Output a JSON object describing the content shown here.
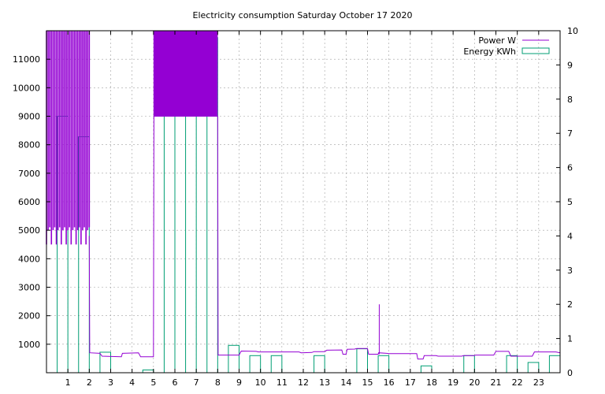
{
  "chart_data": {
    "type": "line",
    "title": "Electricity consumption Saturday October 17 2020",
    "xlabel": "",
    "ylabel": "",
    "y2label": "",
    "xlim": [
      0,
      24
    ],
    "ylim": [
      0,
      12000
    ],
    "y2lim": [
      0,
      10
    ],
    "x_ticks": [
      1,
      2,
      3,
      4,
      5,
      6,
      7,
      8,
      9,
      10,
      11,
      12,
      13,
      14,
      15,
      16,
      17,
      18,
      19,
      20,
      21,
      22,
      23
    ],
    "y_ticks": [
      1000,
      2000,
      3000,
      4000,
      5000,
      6000,
      7000,
      8000,
      9000,
      10000,
      11000
    ],
    "y2_ticks": [
      0,
      1,
      2,
      3,
      4,
      5,
      6,
      7,
      8,
      9,
      10
    ],
    "grid": true,
    "legend": "top-right",
    "colors": {
      "power": "#9400d3",
      "energy": "#009e73"
    },
    "series": [
      {
        "name": "Power W",
        "axis": "y",
        "style": "line",
        "bands": [
          {
            "x0": 0.0,
            "x1": 2.0,
            "low": 4500,
            "high": 12000
          },
          {
            "x0": 5.0,
            "x1": 8.0,
            "low": 9000,
            "high": 12000
          }
        ],
        "spikes": [
          {
            "x": 15.55,
            "y": 2400
          }
        ],
        "points": [
          [
            2.0,
            4800
          ],
          [
            2.02,
            700
          ],
          [
            2.5,
            680
          ],
          [
            2.6,
            580
          ],
          [
            3.5,
            560
          ],
          [
            3.55,
            680
          ],
          [
            4.3,
            700
          ],
          [
            4.4,
            560
          ],
          [
            5.0,
            560
          ],
          [
            5.02,
            9000
          ],
          [
            8.0,
            9000
          ],
          [
            8.02,
            620
          ],
          [
            9.0,
            620
          ],
          [
            9.1,
            760
          ],
          [
            9.8,
            750
          ],
          [
            9.9,
            730
          ],
          [
            11.8,
            730
          ],
          [
            11.9,
            700
          ],
          [
            12.4,
            710
          ],
          [
            12.5,
            740
          ],
          [
            13.0,
            740
          ],
          [
            13.1,
            790
          ],
          [
            13.8,
            800
          ],
          [
            13.85,
            650
          ],
          [
            14.0,
            650
          ],
          [
            14.05,
            820
          ],
          [
            14.4,
            830
          ],
          [
            14.5,
            850
          ],
          [
            15.0,
            850
          ],
          [
            15.05,
            650
          ],
          [
            15.5,
            650
          ],
          [
            15.52,
            700
          ],
          [
            15.9,
            680
          ],
          [
            16.0,
            670
          ],
          [
            17.3,
            670
          ],
          [
            17.35,
            480
          ],
          [
            17.6,
            480
          ],
          [
            17.65,
            600
          ],
          [
            18.2,
            600
          ],
          [
            18.3,
            580
          ],
          [
            19.4,
            580
          ],
          [
            19.5,
            600
          ],
          [
            20.0,
            600
          ],
          [
            20.05,
            620
          ],
          [
            20.9,
            620
          ],
          [
            21.0,
            750
          ],
          [
            21.6,
            750
          ],
          [
            21.7,
            580
          ],
          [
            22.7,
            580
          ],
          [
            22.8,
            730
          ],
          [
            23.8,
            730
          ],
          [
            24.0,
            700
          ]
        ]
      },
      {
        "name": "Energy KWh",
        "axis": "y2",
        "style": "boxes",
        "x": [
          0,
          1,
          2,
          3,
          4,
          5,
          6,
          7,
          8,
          9,
          10,
          11,
          12,
          13,
          14,
          15,
          16,
          17,
          18,
          19,
          20,
          21,
          22,
          23
        ],
        "values": [
          7.5,
          6.9,
          0.6,
          0.0,
          0.08,
          9.3,
          9.2,
          9.8,
          0.8,
          0.5,
          0.5,
          0.0,
          0.5,
          0.0,
          0.7,
          0.5,
          0.0,
          0.2,
          0.0,
          0.5,
          0.0,
          0.5,
          0.3,
          0.5
        ]
      }
    ]
  }
}
